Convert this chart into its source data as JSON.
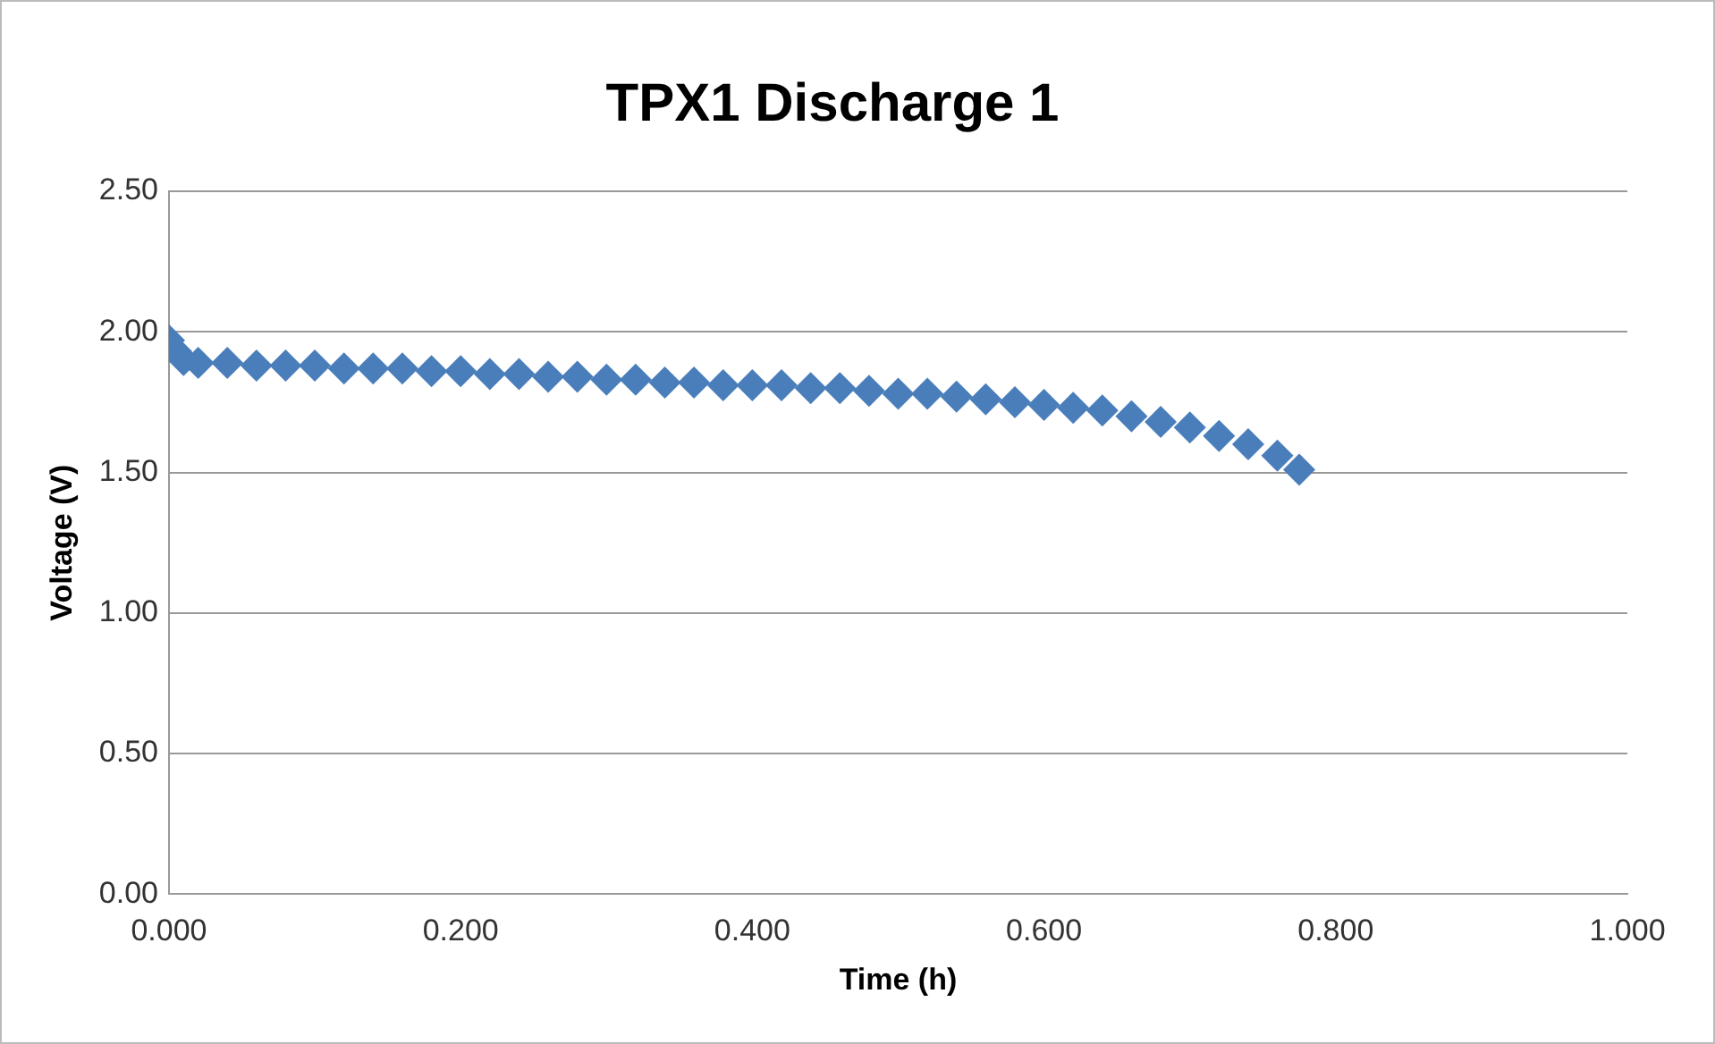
{
  "chart_data": {
    "type": "scatter",
    "title": "TPX1 Discharge 1",
    "xlabel": "Time (h)",
    "ylabel": "Voltage (V)",
    "x": [
      0,
      0.005,
      0.01,
      0.02,
      0.04,
      0.06,
      0.08,
      0.1,
      0.12,
      0.14,
      0.16,
      0.18,
      0.2,
      0.22,
      0.24,
      0.26,
      0.28,
      0.3,
      0.32,
      0.34,
      0.36,
      0.38,
      0.4,
      0.42,
      0.44,
      0.46,
      0.48,
      0.5,
      0.52,
      0.54,
      0.56,
      0.58,
      0.6,
      0.62,
      0.64,
      0.66,
      0.68,
      0.7,
      0.72,
      0.74,
      0.76,
      0.775
    ],
    "series": [
      {
        "color": "#4a7ebb",
        "values": [
          1.97,
          1.93,
          1.9,
          1.89,
          1.89,
          1.88,
          1.88,
          1.88,
          1.87,
          1.87,
          1.87,
          1.86,
          1.86,
          1.85,
          1.85,
          1.84,
          1.84,
          1.83,
          1.83,
          1.82,
          1.82,
          1.81,
          1.81,
          1.81,
          1.8,
          1.8,
          1.79,
          1.78,
          1.78,
          1.77,
          1.76,
          1.75,
          1.74,
          1.73,
          1.72,
          1.7,
          1.68,
          1.66,
          1.63,
          1.6,
          1.56,
          1.51
        ]
      }
    ],
    "xlim": [
      0,
      1
    ],
    "xticks": [
      {
        "value": 0,
        "label": "0.000"
      },
      {
        "value": 0.2,
        "label": "0.200"
      },
      {
        "value": 0.4,
        "label": "0.400"
      },
      {
        "value": 0.6,
        "label": "0.600"
      },
      {
        "value": 0.8,
        "label": "0.800"
      },
      {
        "value": 1,
        "label": "1.000"
      }
    ],
    "ylim": [
      0,
      2.5
    ],
    "yticks": [
      {
        "value": 0,
        "label": "0.00"
      },
      {
        "value": 0.5,
        "label": "0.50"
      },
      {
        "value": 1,
        "label": "1.00"
      },
      {
        "value": 1.5,
        "label": "1.50"
      },
      {
        "value": 2,
        "label": "2.00"
      },
      {
        "value": 2.5,
        "label": "2.50"
      }
    ],
    "grid": "y",
    "legend": false,
    "marker": "diamond"
  }
}
